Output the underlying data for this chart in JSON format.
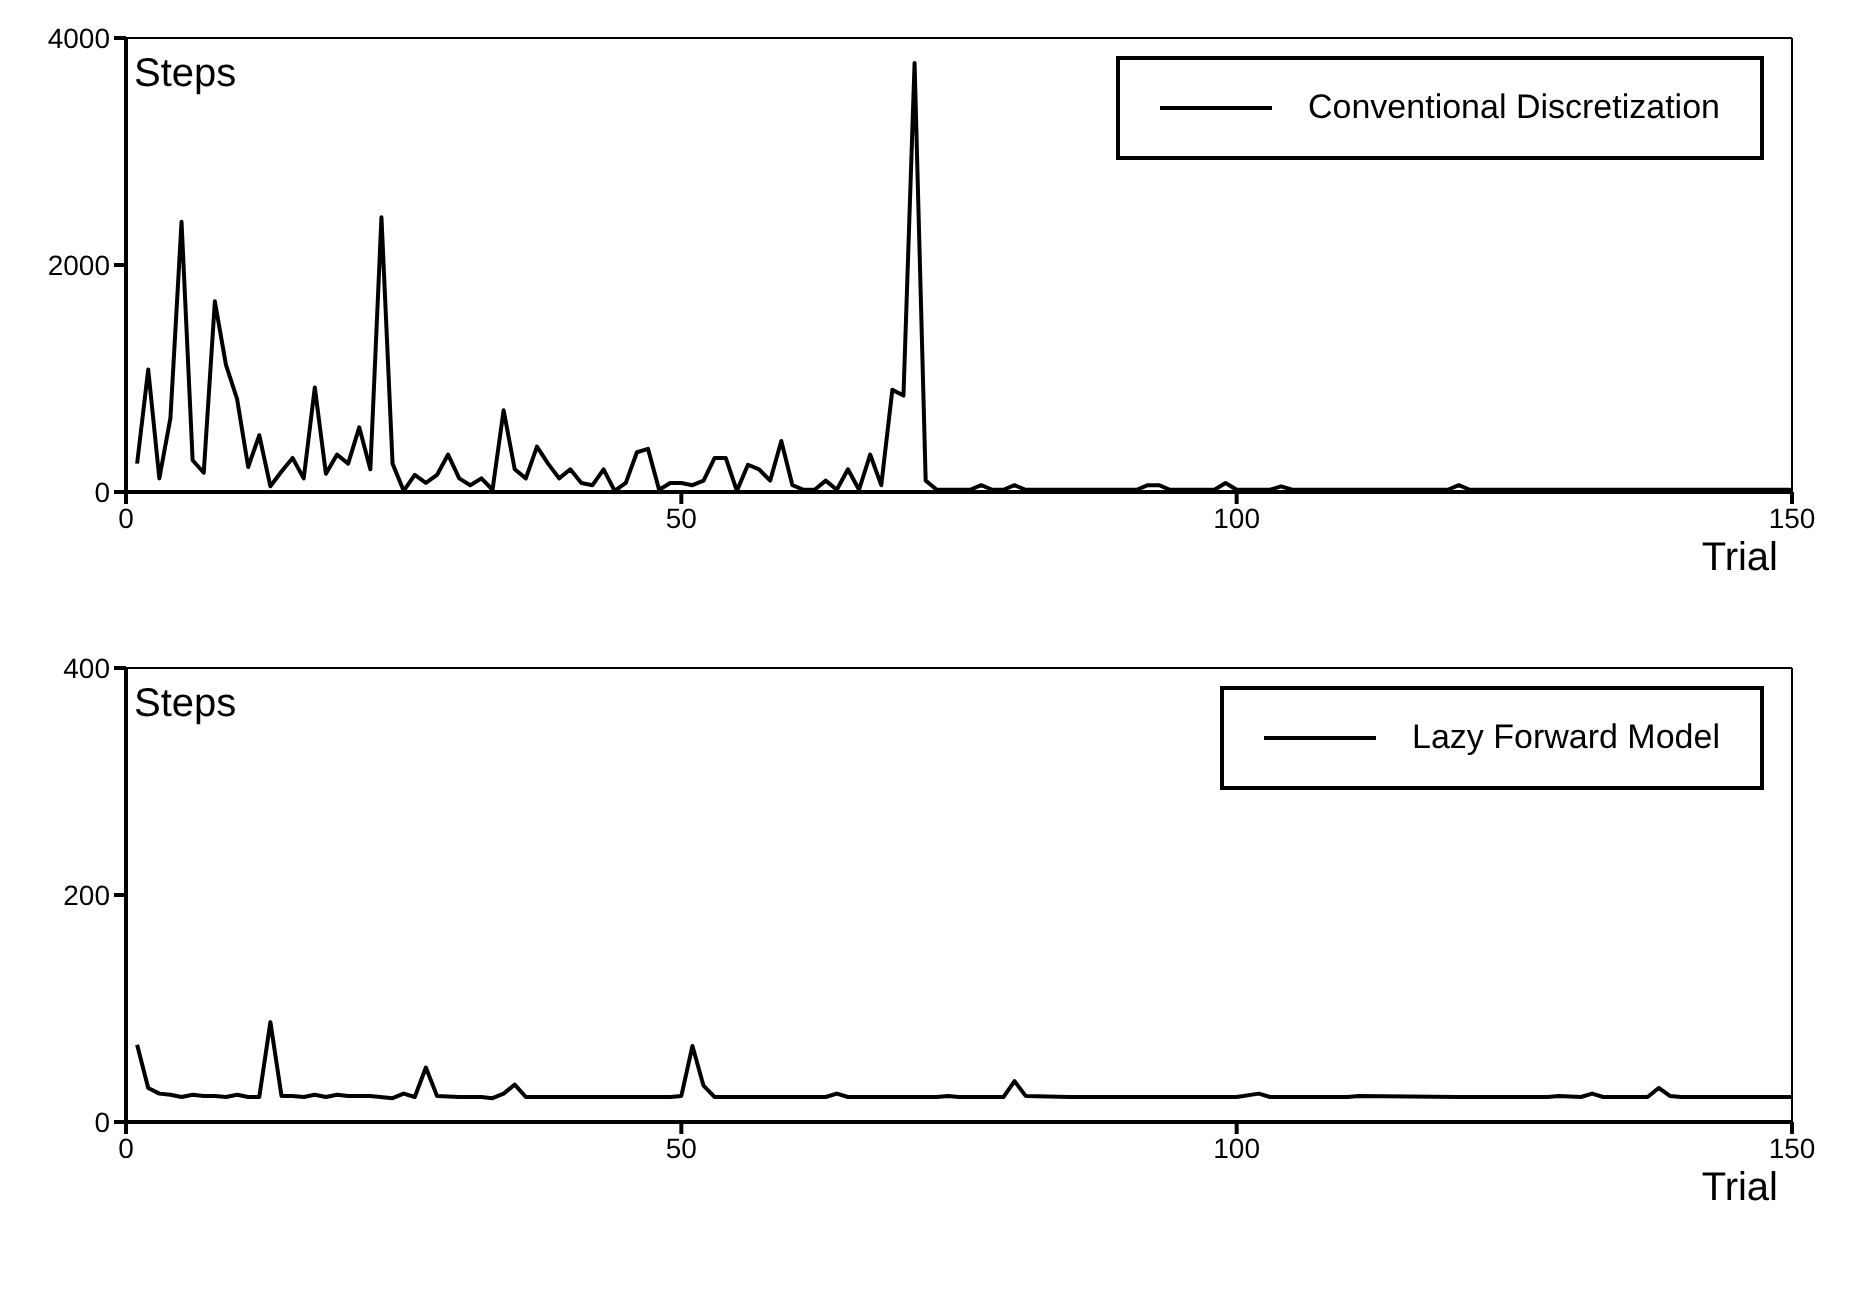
{
  "chart_data": [
    {
      "type": "line",
      "xlabel": "Trial",
      "ylabel": "Steps",
      "xlim": [
        0,
        150
      ],
      "xticks": [
        0,
        50,
        100,
        150
      ],
      "ylim": [
        0,
        4000
      ],
      "yticks": [
        0,
        2000,
        4000
      ],
      "legend": "top right",
      "marker": "none",
      "line_style": "solid",
      "series": [
        {
          "name": "Conventional Discretization",
          "color": "#000000",
          "x": [
            1,
            2,
            3,
            4,
            5,
            6,
            7,
            8,
            9,
            10,
            11,
            12,
            13,
            14,
            15,
            16,
            17,
            18,
            19,
            20,
            21,
            22,
            23,
            24,
            25,
            26,
            27,
            28,
            29,
            30,
            31,
            32,
            33,
            34,
            35,
            36,
            37,
            38,
            39,
            40,
            41,
            42,
            43,
            44,
            45,
            46,
            47,
            48,
            49,
            50,
            51,
            52,
            53,
            54,
            55,
            56,
            57,
            58,
            59,
            60,
            61,
            62,
            63,
            64,
            65,
            66,
            67,
            68,
            69,
            70,
            71,
            72,
            73,
            74,
            75,
            76,
            77,
            78,
            79,
            80,
            81,
            90,
            91,
            92,
            93,
            94,
            98,
            99,
            100,
            101,
            103,
            104,
            105,
            118,
            119,
            120,
            121,
            122,
            150
          ],
          "values": [
            250,
            1080,
            120,
            650,
            2380,
            280,
            170,
            1680,
            1120,
            820,
            220,
            500,
            50,
            180,
            300,
            120,
            920,
            160,
            330,
            250,
            570,
            200,
            2420,
            250,
            10,
            150,
            80,
            150,
            330,
            120,
            60,
            120,
            20,
            720,
            200,
            120,
            400,
            250,
            120,
            200,
            80,
            60,
            200,
            10,
            80,
            350,
            380,
            20,
            80,
            80,
            60,
            100,
            300,
            300,
            10,
            240,
            200,
            100,
            450,
            60,
            20,
            20,
            100,
            20,
            200,
            20,
            330,
            60,
            900,
            850,
            3780,
            100,
            20,
            20,
            20,
            20,
            60,
            20,
            20,
            60,
            20,
            20,
            20,
            60,
            60,
            20,
            20,
            80,
            20,
            20,
            20,
            50,
            20,
            20,
            20,
            60,
            20,
            20,
            20
          ]
        }
      ]
    },
    {
      "type": "line",
      "xlabel": "Trial",
      "ylabel": "Steps",
      "xlim": [
        0,
        150
      ],
      "xticks": [
        0,
        50,
        100,
        150
      ],
      "ylim": [
        0,
        400
      ],
      "yticks": [
        0,
        200,
        400
      ],
      "legend": "top right",
      "marker": "none",
      "line_style": "solid",
      "series": [
        {
          "name": "Lazy Forward Model",
          "color": "#000000",
          "x": [
            1,
            2,
            3,
            4,
            5,
            6,
            7,
            8,
            9,
            10,
            11,
            12,
            13,
            14,
            15,
            16,
            17,
            18,
            19,
            20,
            22,
            24,
            25,
            26,
            27,
            28,
            30,
            32,
            33,
            34,
            35,
            36,
            40,
            45,
            49,
            50,
            51,
            52,
            53,
            56,
            60,
            63,
            64,
            65,
            70,
            73,
            74,
            75,
            79,
            80,
            81,
            85,
            90,
            100,
            102,
            103,
            110,
            111,
            120,
            128,
            129,
            131,
            132,
            133,
            137,
            138,
            139,
            140,
            150
          ],
          "values": [
            68,
            30,
            25,
            24,
            22,
            24,
            23,
            23,
            22,
            24,
            22,
            22,
            88,
            23,
            23,
            22,
            24,
            22,
            24,
            23,
            23,
            21,
            25,
            22,
            48,
            23,
            22,
            22,
            21,
            25,
            33,
            22,
            22,
            22,
            22,
            23,
            67,
            32,
            22,
            22,
            22,
            22,
            25,
            22,
            22,
            22,
            23,
            22,
            22,
            36,
            23,
            22,
            22,
            22,
            25,
            22,
            22,
            23,
            22,
            22,
            23,
            22,
            25,
            22,
            22,
            30,
            23,
            22,
            22
          ]
        }
      ]
    }
  ]
}
